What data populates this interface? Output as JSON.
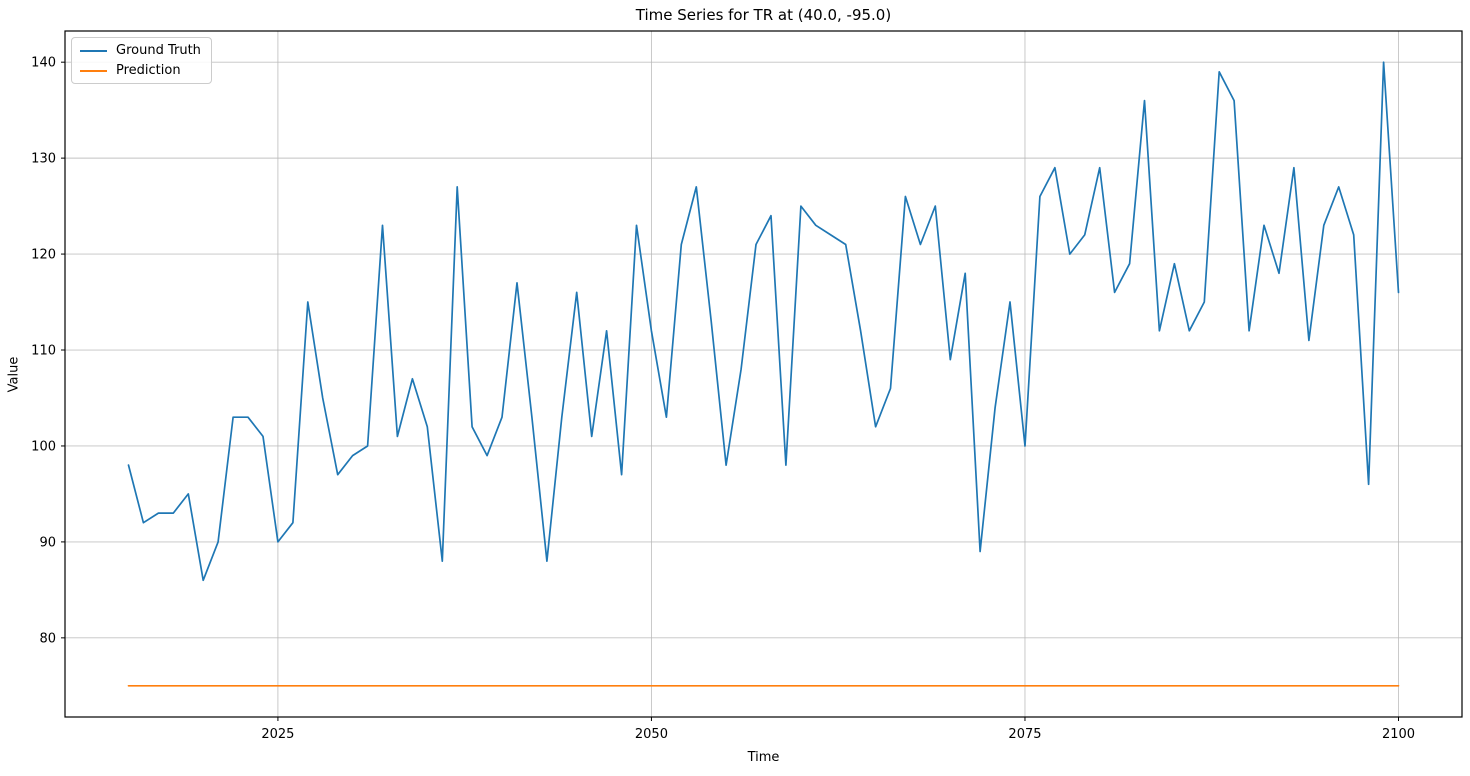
{
  "figure": {
    "title": "Time Series for TR at (40.0, -95.0)",
    "xlabel": "Time",
    "ylabel": "Value"
  },
  "legend": {
    "items": [
      {
        "label": "Ground Truth",
        "color": "#1f77b4"
      },
      {
        "label": "Prediction",
        "color": "#ff7f0e"
      }
    ]
  },
  "chart_data": {
    "type": "line",
    "title": "Time Series for TR at (40.0, -95.0)",
    "xlabel": "Time",
    "ylabel": "Value",
    "x_start": 2015,
    "x_step": 1,
    "x_end": 2100,
    "series": [
      {
        "name": "Ground Truth",
        "color": "#1f77b4",
        "values": [
          98,
          92,
          93,
          93,
          95,
          86,
          90,
          103,
          103,
          101,
          90,
          92,
          115,
          105,
          97,
          99,
          100,
          123,
          101,
          107,
          102,
          88,
          127,
          102,
          99,
          103,
          117,
          103,
          88,
          103,
          116,
          101,
          112,
          97,
          123,
          112,
          103,
          121,
          127,
          113,
          98,
          108,
          121,
          124,
          98,
          125,
          123,
          122,
          121,
          112,
          102,
          106,
          126,
          121,
          125,
          109,
          118,
          89,
          104,
          115,
          100,
          126,
          129,
          120,
          122,
          129,
          116,
          119,
          136,
          112,
          119,
          112,
          115,
          139,
          136,
          112,
          123,
          118,
          129,
          111,
          123,
          127,
          122,
          96,
          140,
          116
        ]
      },
      {
        "name": "Prediction",
        "color": "#ff7f0e",
        "constant": 75
      }
    ],
    "x_ticks": [
      2025,
      2050,
      2075,
      2100
    ],
    "y_ticks": [
      80,
      90,
      100,
      110,
      120,
      130,
      140
    ],
    "xlim": [
      2010.75,
      2104.25
    ],
    "ylim": [
      71.75,
      143.25
    ],
    "grid": true,
    "grid_color": "#b8b8b8",
    "spine_color": "#000000",
    "legend_position": "upper left"
  }
}
